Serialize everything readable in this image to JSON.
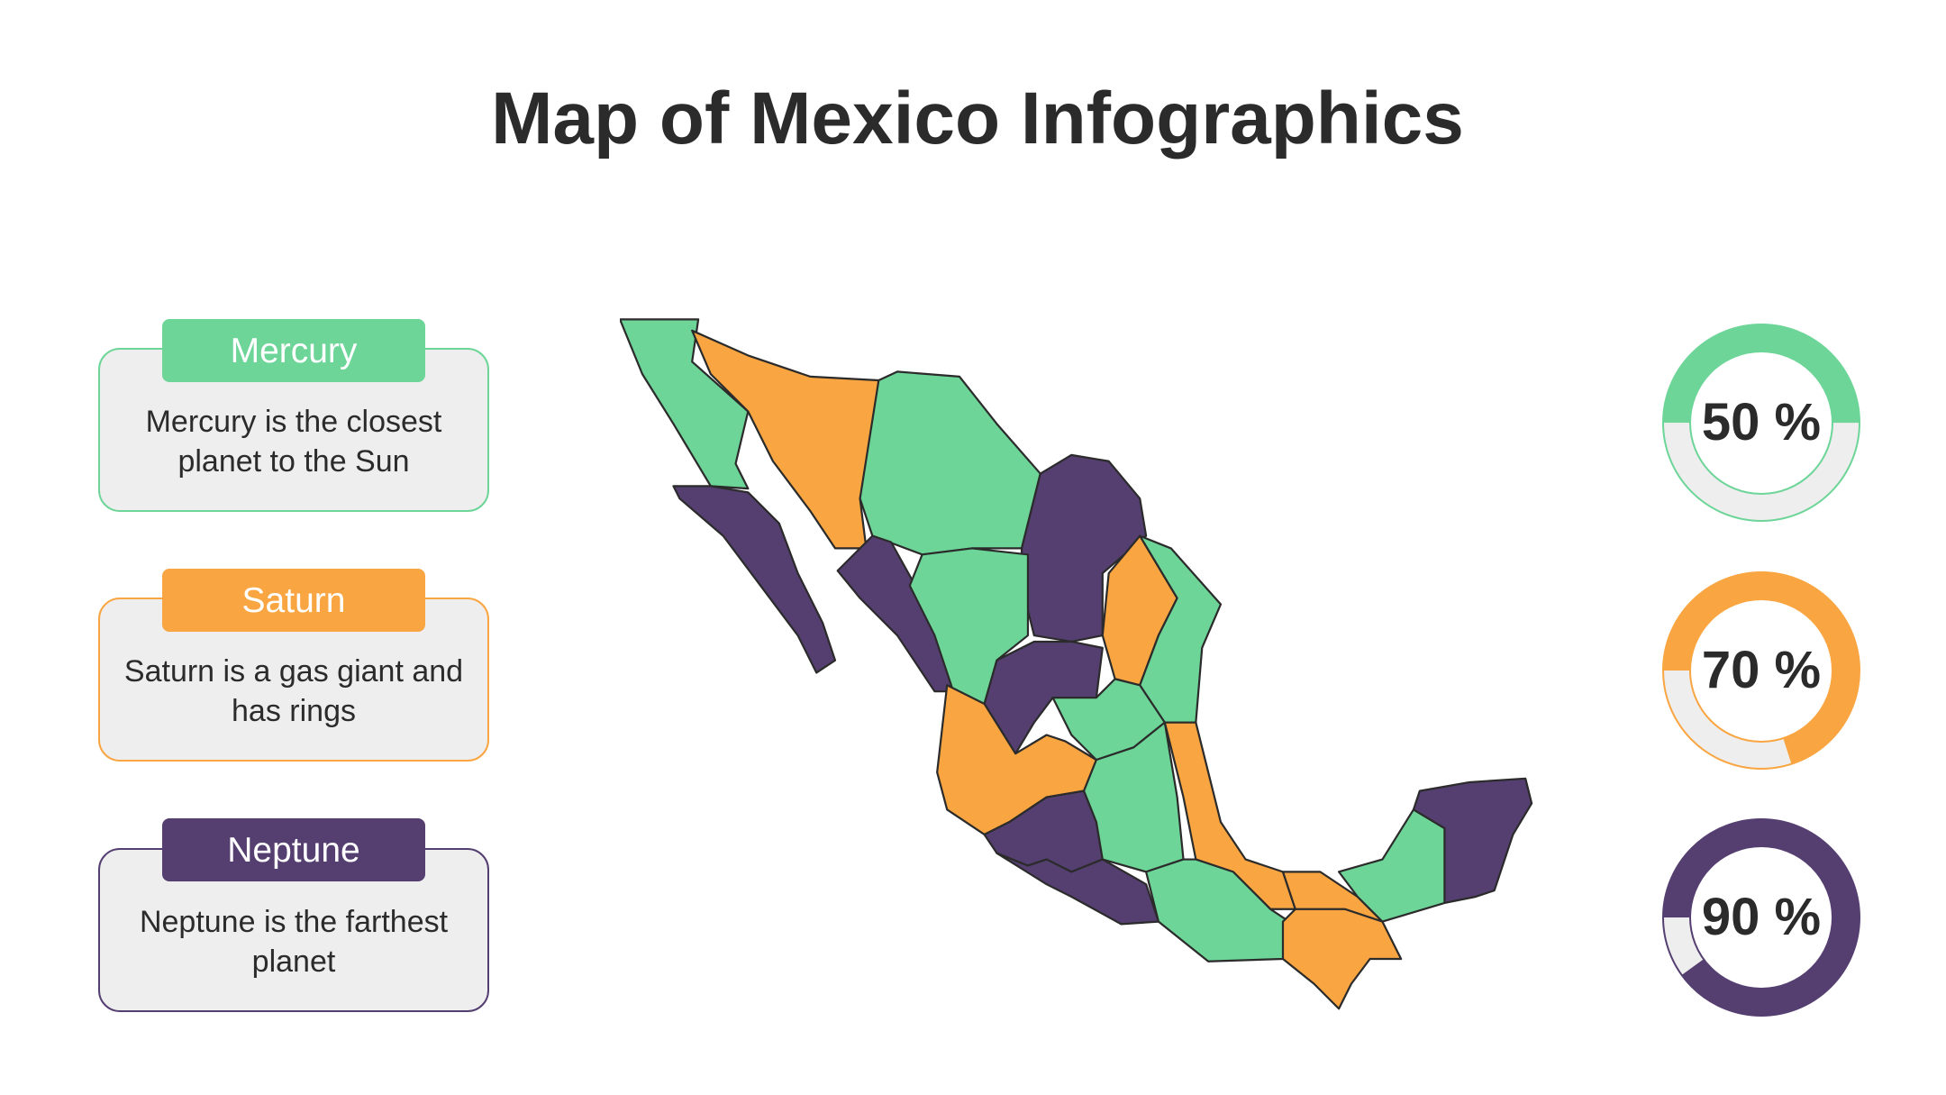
{
  "title": "Map of Mexico Infographics",
  "colors": {
    "green": "#6dd598",
    "orange": "#f9a541",
    "purple": "#553f71",
    "grey": "#eeeeee"
  },
  "cards": [
    {
      "label": "Mercury",
      "text": "Mercury is the closest planet to the Sun",
      "color": "#6dd598"
    },
    {
      "label": "Saturn",
      "text": "Saturn is a gas giant and has rings",
      "color": "#f9a541"
    },
    {
      "label": "Neptune",
      "text": "Neptune is the farthest planet",
      "color": "#553f71"
    }
  ],
  "gauges": [
    {
      "label": "50 %",
      "value": 50,
      "color": "#6dd598"
    },
    {
      "label": "70 %",
      "value": 70,
      "color": "#f9a541"
    },
    {
      "label": "90 %",
      "value": 90,
      "color": "#553f71"
    }
  ]
}
